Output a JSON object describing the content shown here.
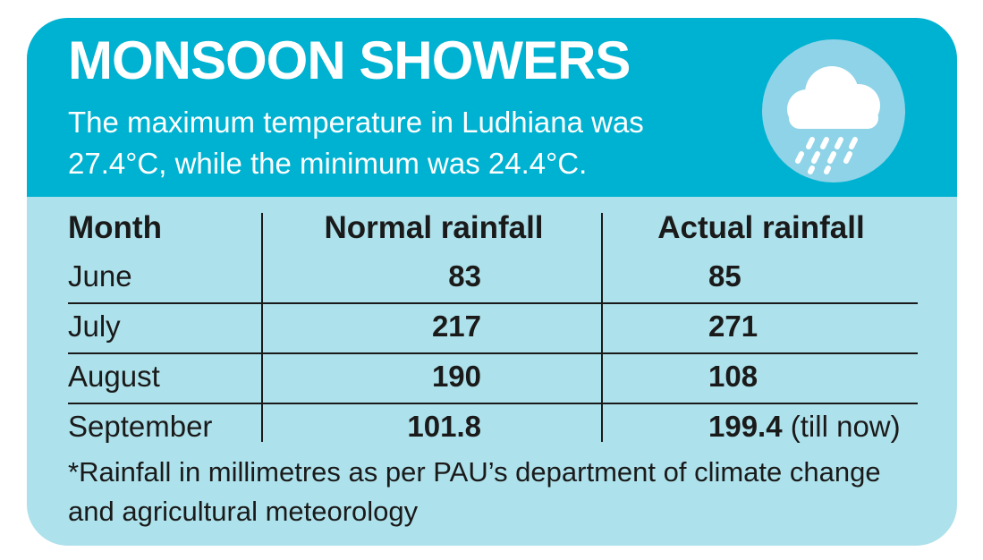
{
  "header": {
    "title": "MONSOON SHOWERS",
    "subtitle": "The maximum temperature in Ludhiana was 27.4°C, while the minimum was 24.4°C.",
    "icon": "rain-cloud-icon",
    "background_color": "#00b2d1"
  },
  "table": {
    "columns": [
      "Month",
      "Normal rainfall",
      "Actual rainfall"
    ],
    "rows": [
      {
        "month": "June",
        "normal": "83",
        "actual": "85",
        "note": ""
      },
      {
        "month": "July",
        "normal": "217",
        "actual": "271",
        "note": ""
      },
      {
        "month": "August",
        "normal": "190",
        "actual": "108",
        "note": ""
      },
      {
        "month": "September",
        "normal": "101.8",
        "actual": "199.4",
        "note": "(till now)"
      }
    ]
  },
  "footnote": "*Rainfall in millimetres as per PAU’s department of climate change and agricultural meteorology",
  "colors": {
    "body_background": "#ade1eb",
    "header_background": "#00b2d1",
    "icon_circle": "#8fd3e8"
  }
}
